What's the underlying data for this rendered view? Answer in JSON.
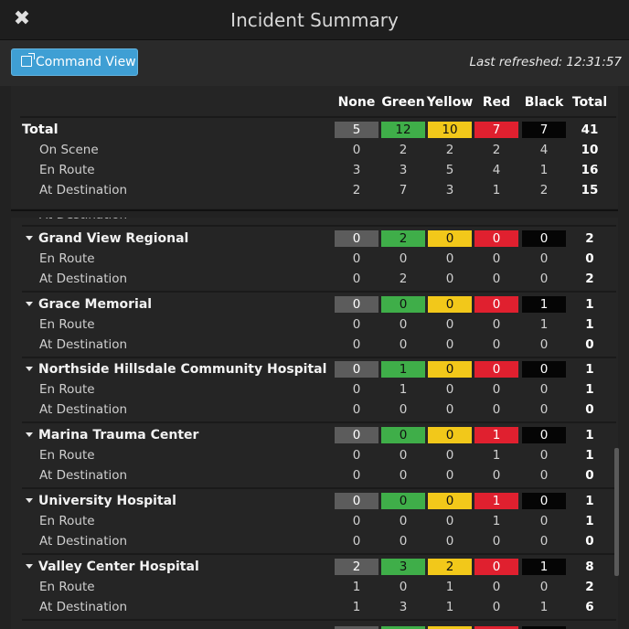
{
  "window": {
    "title": "Incident Summary",
    "close_icon": "close-icon"
  },
  "toolbar": {
    "command_view_label": "Command View",
    "command_view_icon": "external-link-icon",
    "last_refreshed_label": "Last refreshed:",
    "last_refreshed_time": "12:31:57"
  },
  "columns": [
    "None",
    "Green",
    "Yellow",
    "Red",
    "Black",
    "Total"
  ],
  "colors": {
    "none": "#5c5c5c",
    "green": "#3fae49",
    "yellow": "#f2c81a",
    "red": "#e0202f",
    "black": "#050505",
    "accent": "#3f9fd4"
  },
  "summary": {
    "total": {
      "label": "Total",
      "values": [
        5,
        12,
        10,
        7,
        7,
        41
      ]
    },
    "rows": [
      {
        "label": "On Scene",
        "values": [
          0,
          2,
          2,
          2,
          4,
          10
        ]
      },
      {
        "label": "En Route",
        "values": [
          3,
          3,
          5,
          4,
          1,
          16
        ]
      },
      {
        "label": "At Destination",
        "values": [
          2,
          7,
          3,
          1,
          2,
          15
        ]
      }
    ]
  },
  "clipped_top_label": "At Destination",
  "hospitals": [
    {
      "name": "Grand View Regional",
      "values": [
        0,
        2,
        0,
        0,
        0,
        2
      ],
      "rows": [
        {
          "label": "En Route",
          "values": [
            0,
            0,
            0,
            0,
            0,
            0
          ]
        },
        {
          "label": "At Destination",
          "values": [
            0,
            2,
            0,
            0,
            0,
            2
          ]
        }
      ]
    },
    {
      "name": "Grace Memorial",
      "values": [
        0,
        0,
        0,
        0,
        1,
        1
      ],
      "rows": [
        {
          "label": "En Route",
          "values": [
            0,
            0,
            0,
            0,
            1,
            1
          ]
        },
        {
          "label": "At Destination",
          "values": [
            0,
            0,
            0,
            0,
            0,
            0
          ]
        }
      ]
    },
    {
      "name": "Northside Hillsdale Community Hospital",
      "values": [
        0,
        1,
        0,
        0,
        0,
        1
      ],
      "rows": [
        {
          "label": "En Route",
          "values": [
            0,
            1,
            0,
            0,
            0,
            1
          ]
        },
        {
          "label": "At Destination",
          "values": [
            0,
            0,
            0,
            0,
            0,
            0
          ]
        }
      ]
    },
    {
      "name": "Marina Trauma Center",
      "values": [
        0,
        0,
        0,
        1,
        0,
        1
      ],
      "rows": [
        {
          "label": "En Route",
          "values": [
            0,
            0,
            0,
            1,
            0,
            1
          ]
        },
        {
          "label": "At Destination",
          "values": [
            0,
            0,
            0,
            0,
            0,
            0
          ]
        }
      ]
    },
    {
      "name": "University Hospital",
      "values": [
        0,
        0,
        0,
        1,
        0,
        1
      ],
      "rows": [
        {
          "label": "En Route",
          "values": [
            0,
            0,
            0,
            1,
            0,
            1
          ]
        },
        {
          "label": "At Destination",
          "values": [
            0,
            0,
            0,
            0,
            0,
            0
          ]
        }
      ]
    },
    {
      "name": "Valley Center Hospital",
      "values": [
        2,
        3,
        2,
        0,
        1,
        8
      ],
      "rows": [
        {
          "label": "En Route",
          "values": [
            1,
            0,
            1,
            0,
            0,
            2
          ]
        },
        {
          "label": "At Destination",
          "values": [
            1,
            3,
            1,
            0,
            1,
            6
          ]
        }
      ]
    }
  ]
}
